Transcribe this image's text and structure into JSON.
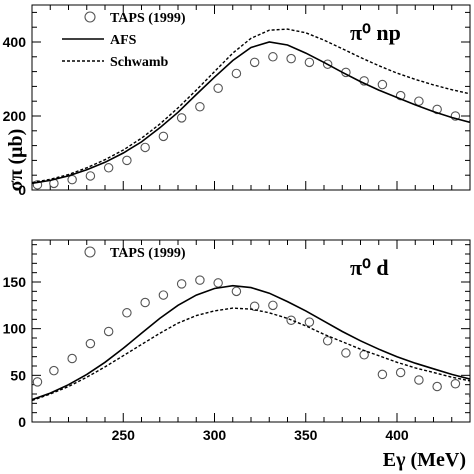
{
  "chart_data": [
    {
      "type": "line",
      "process_label": "π⁰ np",
      "ylabel": "σπ (μb)",
      "xlim": [
        200,
        440
      ],
      "ylim": [
        0,
        500
      ],
      "yticks": [
        0,
        200,
        400
      ],
      "legend": {
        "placement": "top-left",
        "entries": [
          "TAPS (1999)",
          "AFS",
          "Schwamb"
        ]
      },
      "series": [
        {
          "name": "TAPS (1999)",
          "style": "open-circle",
          "x": [
            203,
            212,
            222,
            232,
            242,
            252,
            262,
            272,
            282,
            292,
            302,
            312,
            322,
            332,
            342,
            352,
            362,
            372,
            382,
            392,
            402,
            412,
            422,
            432,
            442
          ],
          "y": [
            14,
            18,
            28,
            38,
            60,
            80,
            115,
            145,
            195,
            225,
            275,
            315,
            345,
            360,
            355,
            345,
            340,
            318,
            295,
            285,
            255,
            240,
            218,
            200,
            185
          ]
        },
        {
          "name": "AFS",
          "style": "solid",
          "x": [
            200,
            210,
            220,
            230,
            240,
            250,
            260,
            270,
            280,
            290,
            300,
            310,
            320,
            330,
            340,
            350,
            360,
            370,
            380,
            390,
            400,
            410,
            420,
            430,
            440
          ],
          "y": [
            18,
            26,
            38,
            55,
            75,
            100,
            130,
            168,
            210,
            258,
            305,
            350,
            385,
            400,
            392,
            370,
            345,
            318,
            293,
            270,
            250,
            230,
            212,
            196,
            183
          ]
        },
        {
          "name": "Schwamb",
          "style": "dashed",
          "x": [
            200,
            210,
            220,
            230,
            240,
            250,
            260,
            270,
            280,
            290,
            300,
            310,
            320,
            330,
            340,
            350,
            360,
            370,
            380,
            390,
            400,
            410,
            420,
            430,
            440
          ],
          "y": [
            20,
            29,
            42,
            60,
            82,
            108,
            140,
            178,
            222,
            270,
            320,
            370,
            410,
            432,
            435,
            425,
            405,
            382,
            358,
            336,
            316,
            299,
            284,
            271,
            260
          ]
        }
      ]
    },
    {
      "type": "line",
      "process_label": "π⁰ d",
      "xlabel": "Eγ (MeV)",
      "xlim": [
        200,
        440
      ],
      "ylim": [
        0,
        195
      ],
      "yticks": [
        0,
        50,
        100,
        150
      ],
      "xticks": [
        250,
        300,
        350,
        400
      ],
      "legend": {
        "placement": "top-left",
        "entries": [
          "TAPS (1999)"
        ]
      },
      "series": [
        {
          "name": "TAPS (1999)",
          "style": "open-circle",
          "x": [
            203,
            212,
            222,
            232,
            242,
            252,
            262,
            272,
            282,
            292,
            302,
            312,
            322,
            332,
            342,
            352,
            362,
            372,
            382,
            392,
            402,
            412,
            422,
            432,
            442
          ],
          "y": [
            43,
            55,
            68,
            84,
            97,
            117,
            128,
            136,
            148,
            152,
            149,
            140,
            124,
            125,
            109,
            107,
            87,
            74,
            72,
            51,
            53,
            45,
            38,
            41,
            28
          ]
        },
        {
          "name": "AFS",
          "style": "solid",
          "x": [
            200,
            210,
            220,
            230,
            240,
            250,
            260,
            270,
            280,
            290,
            300,
            310,
            320,
            330,
            340,
            350,
            360,
            370,
            380,
            390,
            400,
            410,
            420,
            430,
            440
          ],
          "y": [
            24,
            31,
            40,
            51,
            64,
            79,
            95,
            111,
            125,
            136,
            143,
            146,
            144,
            138,
            129,
            119,
            108,
            97,
            87,
            78,
            70,
            63,
            57,
            51,
            46
          ]
        },
        {
          "name": "Schwamb",
          "style": "dashed",
          "x": [
            200,
            210,
            220,
            230,
            240,
            250,
            260,
            270,
            280,
            290,
            300,
            310,
            320,
            330,
            340,
            350,
            360,
            370,
            380,
            390,
            400,
            410,
            420,
            430,
            440
          ],
          "y": [
            23,
            30,
            38,
            48,
            59,
            71,
            83,
            95,
            106,
            114,
            119,
            122,
            121,
            117,
            111,
            103,
            94,
            86,
            78,
            71,
            64,
            58,
            53,
            48,
            44
          ]
        }
      ]
    }
  ]
}
